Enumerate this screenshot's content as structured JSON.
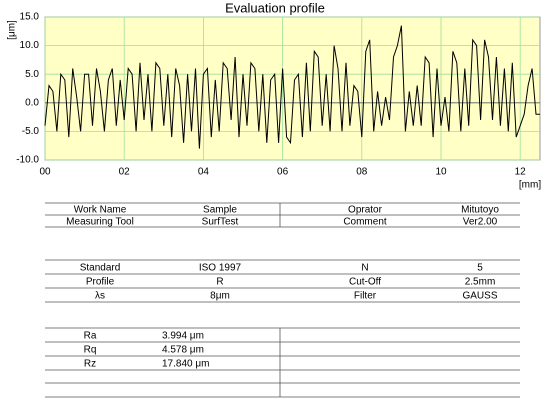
{
  "chart_data": {
    "type": "line",
    "title": "Evaluation profile",
    "y_label": "[μm]",
    "x_label": "[mm]",
    "xlim": [
      0,
      12.5
    ],
    "ylim": [
      -10,
      15
    ],
    "xticks": [
      {
        "value": 0,
        "label": "00"
      },
      {
        "value": 2,
        "label": "02"
      },
      {
        "value": 4,
        "label": "04"
      },
      {
        "value": 6,
        "label": "06"
      },
      {
        "value": 8,
        "label": "08"
      },
      {
        "value": 10,
        "label": "10"
      },
      {
        "value": 12,
        "label": "12"
      }
    ],
    "yticks": [
      {
        "value": -10,
        "label": "-10.0"
      },
      {
        "value": -5,
        "label": "-5.0"
      },
      {
        "value": 0,
        "label": "0.0"
      },
      {
        "value": 5,
        "label": "5.0"
      },
      {
        "value": 10,
        "label": "10.0"
      },
      {
        "value": 15,
        "label": "15.0"
      }
    ],
    "grid": true,
    "background": "#ffffc6",
    "grid_color": "#9fdf9f",
    "x": [
      0.0,
      0.1,
      0.2,
      0.3,
      0.4,
      0.5,
      0.6,
      0.7,
      0.8,
      0.9,
      1.0,
      1.1,
      1.2,
      1.3,
      1.4,
      1.5,
      1.6,
      1.7,
      1.8,
      1.9,
      2.0,
      2.1,
      2.2,
      2.3,
      2.4,
      2.5,
      2.6,
      2.7,
      2.8,
      2.9,
      3.0,
      3.1,
      3.2,
      3.3,
      3.4,
      3.5,
      3.6,
      3.7,
      3.8,
      3.9,
      4.0,
      4.1,
      4.2,
      4.3,
      4.4,
      4.5,
      4.6,
      4.7,
      4.8,
      4.9,
      5.0,
      5.1,
      5.2,
      5.3,
      5.4,
      5.5,
      5.6,
      5.7,
      5.8,
      5.9,
      6.0,
      6.1,
      6.2,
      6.3,
      6.4,
      6.5,
      6.6,
      6.7,
      6.8,
      6.9,
      7.0,
      7.1,
      7.2,
      7.3,
      7.4,
      7.5,
      7.6,
      7.7,
      7.8,
      7.9,
      8.0,
      8.1,
      8.2,
      8.3,
      8.4,
      8.5,
      8.6,
      8.7,
      8.8,
      8.9,
      9.0,
      9.1,
      9.2,
      9.3,
      9.4,
      9.5,
      9.6,
      9.7,
      9.8,
      9.9,
      10.0,
      10.1,
      10.2,
      10.3,
      10.4,
      10.5,
      10.6,
      10.7,
      10.8,
      10.9,
      11.0,
      11.1,
      11.2,
      11.3,
      11.4,
      11.5,
      11.6,
      11.7,
      11.8,
      11.9,
      12.0,
      12.1,
      12.2,
      12.3,
      12.4,
      12.5
    ],
    "series": [
      {
        "color": "#000000",
        "values": [
          -4,
          3,
          2,
          -5,
          5,
          4,
          -6,
          6,
          1,
          -5,
          5,
          5,
          -4,
          6,
          2,
          -5,
          4,
          6,
          -4,
          4,
          -3,
          6,
          5,
          -5,
          7,
          -3,
          5,
          -5,
          7,
          6,
          -4,
          5,
          -6,
          6,
          3,
          -7,
          5,
          -5,
          6,
          -8,
          5,
          6,
          -6,
          4,
          -5,
          7,
          6,
          -3,
          8,
          -6,
          5,
          -4,
          7,
          6,
          -5,
          5,
          -7,
          4,
          5,
          -7,
          6,
          -6,
          -7,
          4,
          5,
          -6,
          7,
          -5,
          9,
          8,
          -4,
          5,
          -5,
          10,
          6,
          -5,
          7,
          -4,
          3,
          2,
          -6,
          9,
          11,
          -5,
          2,
          -4,
          1,
          -3,
          8,
          10,
          13.5,
          -5,
          2,
          -4,
          3,
          -4,
          8,
          7,
          -6,
          6,
          -4,
          1,
          -5,
          9,
          7,
          -5,
          6,
          -4,
          11,
          10,
          -3,
          11,
          8,
          -3,
          8,
          -4,
          6,
          -5,
          7,
          -6,
          -4,
          -2,
          3,
          6,
          -2,
          -2
        ]
      }
    ]
  },
  "info_table": {
    "rows": [
      [
        "Work Name",
        "Sample",
        "Oprator",
        "Mitutoyo"
      ],
      [
        "Measuring Tool",
        "SurfTest",
        "Comment",
        "Ver2.00"
      ]
    ]
  },
  "condition_table": {
    "rows": [
      [
        "Standard",
        "ISO 1997",
        "N",
        "5"
      ],
      [
        "Profile",
        "R",
        "Cut-Off",
        "2.5mm"
      ],
      [
        "λs",
        "8μm",
        "Filter",
        "GAUSS"
      ]
    ]
  },
  "result_table": {
    "rows": [
      [
        "Ra",
        "3.994  μm"
      ],
      [
        "Rq",
        "4.578  μm"
      ],
      [
        "Rz",
        "17.840 μm"
      ]
    ]
  }
}
